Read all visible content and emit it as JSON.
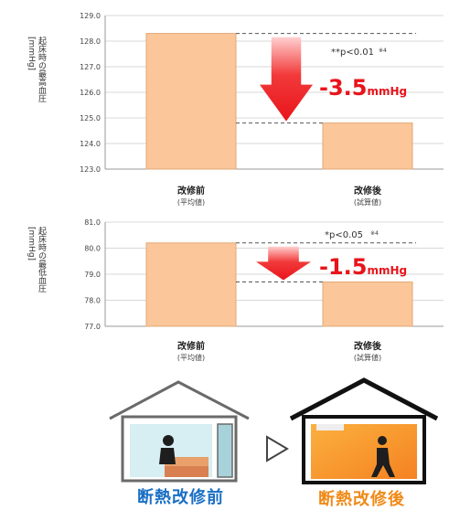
{
  "chart_data": [
    {
      "type": "bar",
      "ylabel": "起床時の最高血圧\n[mmHg]",
      "ylim": [
        123.0,
        129.0
      ],
      "yticks": [
        "129.0",
        "128.0",
        "127.0",
        "126.0",
        "125.0",
        "124.0",
        "123.0"
      ],
      "categories": [
        {
          "label": "改修前",
          "sub": "(平均値)"
        },
        {
          "label": "改修後",
          "sub": "(試算値)"
        }
      ],
      "values": [
        128.3,
        124.8
      ],
      "significance": "**p<0.01",
      "footnote_mark": "※4",
      "difference": "-3.5",
      "unit": "mmHg"
    },
    {
      "type": "bar",
      "ylabel": "起床時の最低血圧\n[mmHg]",
      "ylim": [
        77.0,
        81.0
      ],
      "yticks": [
        "81.0",
        "80.0",
        "79.0",
        "78.0",
        "77.0"
      ],
      "categories": [
        {
          "label": "改修前",
          "sub": "(平均値)"
        },
        {
          "label": "改修後",
          "sub": "(試算値)"
        }
      ],
      "values": [
        80.2,
        78.7
      ],
      "significance": "*p<0.05",
      "footnote_mark": "※4",
      "difference": "-1.5",
      "unit": "mmHg"
    }
  ],
  "illustration": {
    "before_label": "断熱改修前",
    "after_label": "断熱改修後",
    "colors": {
      "bar": "#fbc69a",
      "bar_stroke": "#e3a877",
      "arrow": "#e8141b",
      "before": "#1a6fc4",
      "after": "#f08a18"
    }
  }
}
